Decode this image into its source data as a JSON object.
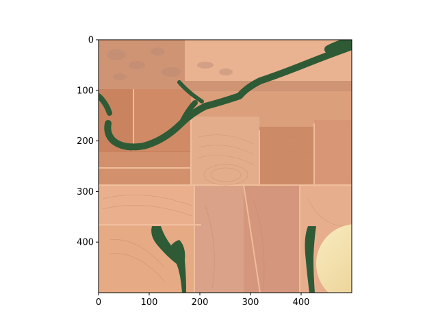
{
  "chart_data": {
    "type": "image",
    "title": "",
    "xlabel": "",
    "ylabel": "",
    "xlim": [
      0,
      500
    ],
    "ylim": [
      500,
      0
    ],
    "x_ticks": [
      0,
      100,
      200,
      300,
      400
    ],
    "y_ticks": [
      0,
      100,
      200,
      300,
      400
    ],
    "x_tick_labels": [
      "0",
      "100",
      "200",
      "300",
      "400"
    ],
    "y_tick_labels": [
      "0",
      "100",
      "200",
      "300",
      "400"
    ],
    "description_colors": {
      "field_light": "#e2a27f",
      "field_dark": "#c98663",
      "field_pale": "#f0c6a4",
      "vegetation": "#2f5a36",
      "pivot_bright": "#f6e7b2"
    }
  }
}
